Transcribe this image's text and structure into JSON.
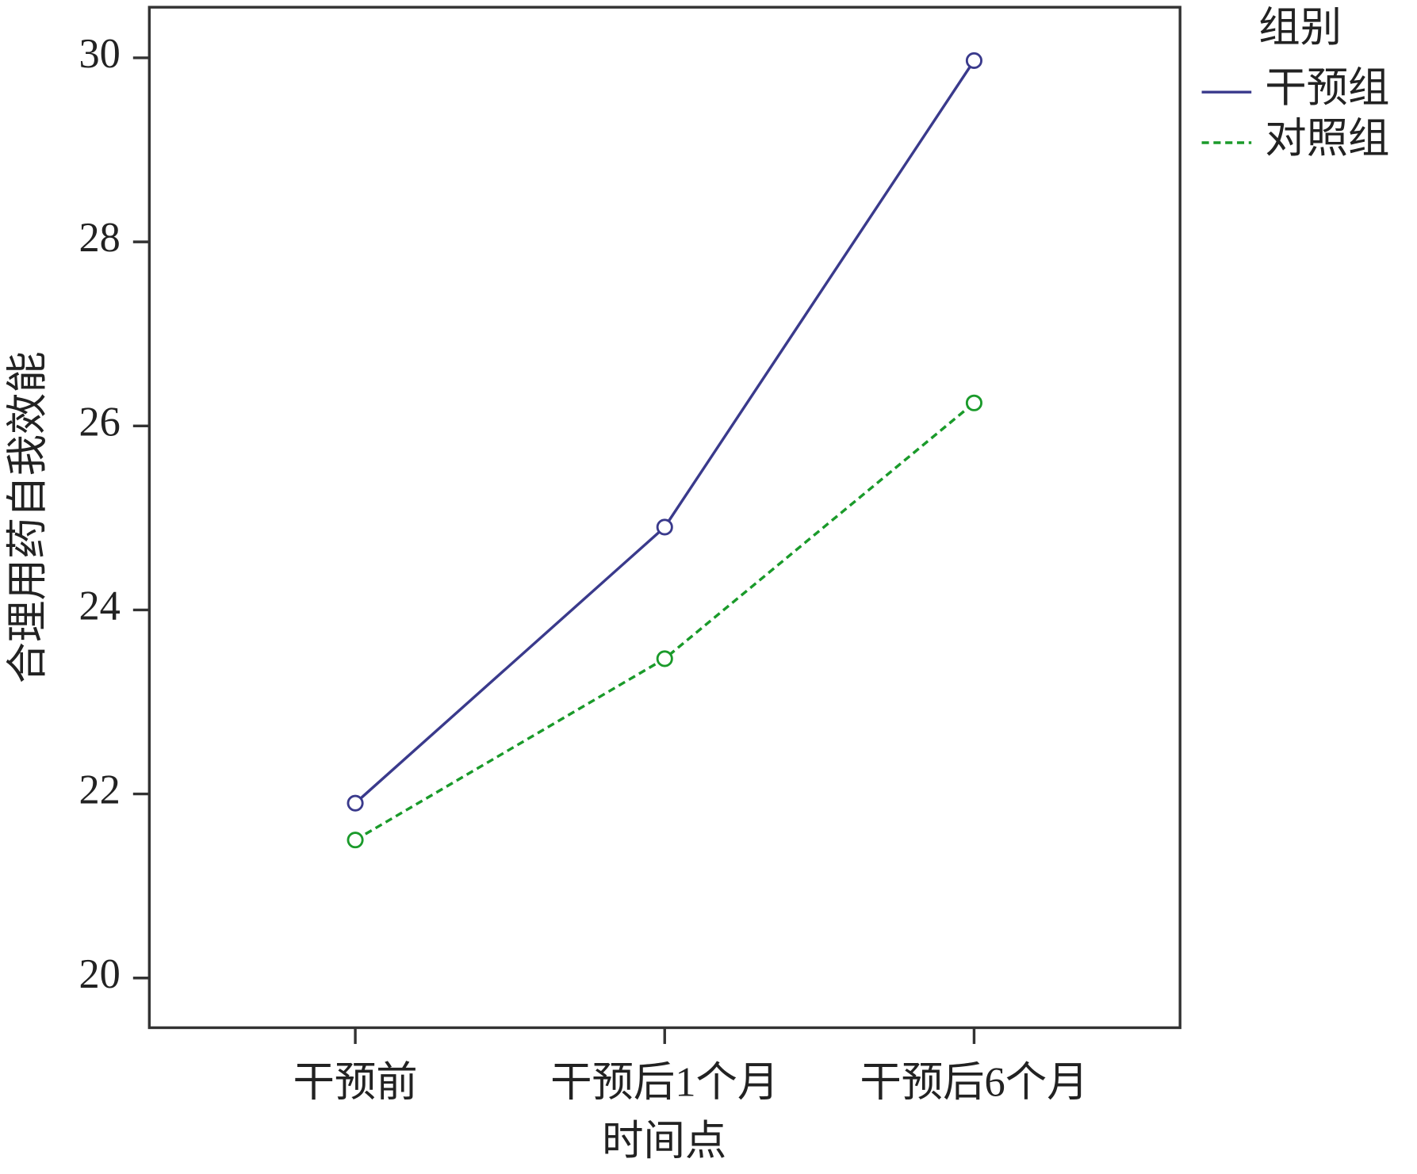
{
  "chart_data": {
    "type": "line",
    "x_label": "时间点",
    "y_label": "合理用药自我效能",
    "categories": [
      "干预前",
      "干预后1个月",
      "干预后6个月"
    ],
    "series": [
      {
        "name": "干预组",
        "color": "#3a3a8c",
        "dash": "solid",
        "values": [
          21.9,
          24.9,
          29.97
        ]
      },
      {
        "name": "对照组",
        "color": "#1a9a2a",
        "dash": "dotted",
        "values": [
          21.5,
          23.47,
          26.25
        ]
      }
    ],
    "legend_title": "组别",
    "ylim": [
      19.46,
      30.55
    ],
    "yticks": [
      20,
      22,
      24,
      26,
      28,
      30
    ]
  }
}
